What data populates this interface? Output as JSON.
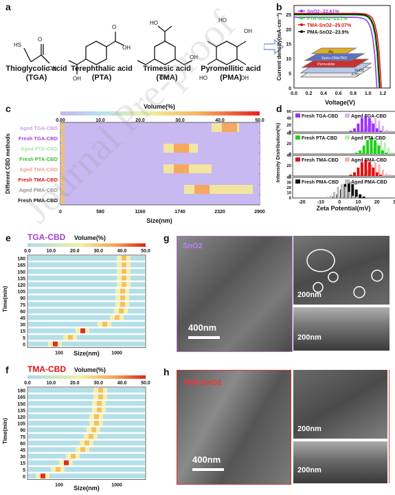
{
  "panels": {
    "a": "a",
    "b": "b",
    "c": "c",
    "d": "d",
    "e": "e",
    "f": "f",
    "g": "g",
    "h": "h"
  },
  "molecules": [
    {
      "name": "Thioglycolic acid",
      "abbr": "(TGA)"
    },
    {
      "name": "Terephthalic acid",
      "abbr": "(PTA)"
    },
    {
      "name": "Trimesic acid",
      "abbr": "(TMA)"
    },
    {
      "name": "Pyromellitic acid",
      "abbr": "(PMA)"
    }
  ],
  "chart_b": {
    "type": "line",
    "xlabel": "Voltage(V)",
    "ylabel": "Current density(mA·cm⁻²)",
    "xticks": [
      "0.0",
      "0.2",
      "0.4",
      "0.6",
      "0.8",
      "1.0",
      "1.2"
    ],
    "yticks": [
      "0",
      "5",
      "10",
      "15",
      "20",
      "25"
    ],
    "series": [
      {
        "name": "SnO2--22.61%",
        "color": "#9b30ff",
        "jsc": 24.0,
        "voc": 1.12
      },
      {
        "name": "PTA-SnO2--23.7%",
        "color": "#1fd11f",
        "jsc": 24.8,
        "voc": 1.15
      },
      {
        "name": "TMA-SnO2--25.07%",
        "color": "#e01010",
        "jsc": 25.3,
        "voc": 1.18
      },
      {
        "name": "PMA-SnO2--23.9%",
        "color": "#111111",
        "jsc": 25.0,
        "voc": 1.16
      }
    ],
    "device_layers": [
      "Au",
      "Spiro-OMeTAD",
      "Perovskite",
      "SnO2",
      "FTO"
    ]
  },
  "chart_c": {
    "type": "heatmap",
    "colorbar_title": "Volume(%)",
    "colorbar_ticks": [
      "0.00",
      "10.0",
      "20.0",
      "30.0",
      "40.0",
      "50.0"
    ],
    "xlabel": "Size(nm)",
    "ylabel": "Different CBD methods",
    "xticks": [
      "0",
      "580",
      "1160",
      "1740",
      "2320",
      "2900"
    ],
    "rows": [
      {
        "label": "Aged TGA-CBD",
        "color": "#c9a0e6"
      },
      {
        "label": "Fresh TGA-CBD",
        "color": "#a040d0"
      },
      {
        "label": "Aged PTA-CBD",
        "color": "#a8e8a0"
      },
      {
        "label": "Fresh PTA-CBD",
        "color": "#30c030"
      },
      {
        "label": "Aged TMA-CBD",
        "color": "#f0a0a0"
      },
      {
        "label": "Fresh TMA-CBD",
        "color": "#e01010"
      },
      {
        "label": "Aged PMA-CBD",
        "color": "#909090"
      },
      {
        "label": "Fresh PMA-CBD",
        "color": "#111111"
      }
    ]
  },
  "chart_d": {
    "type": "bar",
    "xlabel": "Zeta Potential(mV)",
    "ylabel": "Intensity Distribution(%)",
    "xticks": [
      "-20",
      "-10",
      "0",
      "10",
      "20",
      "30"
    ],
    "groups": [
      {
        "fresh": "Fresh TGA-CBD",
        "aged": "Aged TGA-CBD",
        "color": "#9b30ff",
        "light": "#d9b3f5",
        "yticks": [
          "0",
          "20",
          "40",
          "60"
        ]
      },
      {
        "fresh": "Fresh PTA-CBD",
        "aged": "Aged PTA-CBD",
        "color": "#1fd11f",
        "light": "#b8f0b0",
        "yticks": [
          "0",
          "20",
          "40"
        ]
      },
      {
        "fresh": "Fresh TMA-CBD",
        "aged": "Aged TMA-CBD",
        "color": "#e01010",
        "light": "#f5b0b0",
        "yticks": [
          "0",
          "20",
          "40"
        ]
      },
      {
        "fresh": "Fresh PMA-CBD",
        "aged": "Aged PMA-CBD",
        "color": "#111111",
        "light": "#bbbbbb",
        "yticks": [
          "0",
          "10",
          "20",
          "30",
          "40"
        ]
      }
    ]
  },
  "chart_e": {
    "title": "TGA-CBD",
    "title_color": "#a040d0",
    "colorbar_title": "Volume(%)",
    "colorbar_ticks": [
      "0.0",
      "10.0",
      "20.0",
      "30.0",
      "40.0",
      "50.0"
    ],
    "ylabel": "Time(min)",
    "xlabel": "Size(nm)",
    "yticks": [
      "180",
      "165",
      "150",
      "135",
      "120",
      "105",
      "90",
      "75",
      "60",
      "45",
      "30",
      "15",
      "5",
      "0"
    ],
    "xticks": [
      "100",
      "1000"
    ]
  },
  "chart_f": {
    "title": "TMA-CBD",
    "title_color": "#e01010",
    "colorbar_title": "Volume(%)",
    "colorbar_ticks": [
      "0.0",
      "10.0",
      "20.0",
      "30.0",
      "40.0",
      "50.0"
    ],
    "ylabel": "Time(min)",
    "xlabel": "Size(nm)",
    "yticks": [
      "180",
      "165",
      "150",
      "135",
      "120",
      "105",
      "90",
      "75",
      "60",
      "45",
      "30",
      "15",
      "5",
      "0"
    ],
    "xticks": [
      "100",
      "1000"
    ]
  },
  "sem_g": {
    "label": "SnO2",
    "scale_main": "400nm",
    "scale_top": "200nm",
    "scale_bottom": "200nm"
  },
  "sem_h": {
    "label": "TMA-SnO2",
    "scale_main": "400nm",
    "scale_top": "200nm",
    "scale_bottom": "200nm"
  },
  "watermark": "Journal Pre-proof"
}
